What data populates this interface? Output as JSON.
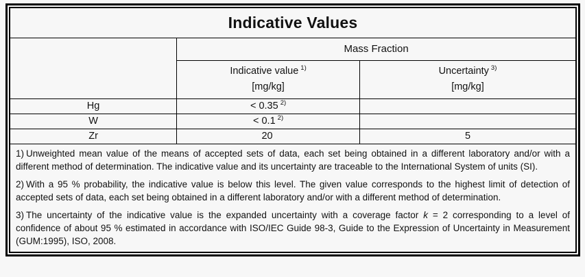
{
  "document": {
    "title": "Indicative Values",
    "group_header": "Mass Fraction",
    "columns": {
      "indicative": {
        "label": "Indicative value",
        "footnote_ref": "1)",
        "unit": "[mg/kg]"
      },
      "uncertainty": {
        "label": "Uncertainty",
        "footnote_ref": "3)",
        "unit": "[mg/kg]"
      }
    },
    "rows": [
      {
        "element": "Hg",
        "indicative": "< 0.35",
        "indicative_ref": "2)",
        "uncertainty": ""
      },
      {
        "element": "W",
        "indicative": "< 0.1",
        "indicative_ref": "2)",
        "uncertainty": ""
      },
      {
        "element": "Zr",
        "indicative": "20",
        "indicative_ref": "",
        "uncertainty": "5"
      }
    ],
    "footnotes": [
      {
        "id": "1)",
        "text": "Unweighted mean value of the means of accepted sets of data, each set being obtained in a different laboratory and/or with a different method of determination. The indicative value and its uncertainty are traceable to the International System of units (SI)."
      },
      {
        "id": "2)",
        "text": "With a 95 % probability, the indicative value is below this level. The given value corresponds to the highest limit of detection of accepted sets of data, each set being obtained in a different laboratory and/or with a different method of determination."
      },
      {
        "id": "3)",
        "text_before": "The uncertainty of the indicative value is the expanded uncertainty with a coverage factor ",
        "italic": "k",
        "text_after": " = 2 corresponding to a level of confidence of about 95 % estimated in accordance with ISO/IEC Guide 98-3, Guide to the Expression of Uncertainty in Measurement (GUM:1995), ISO, 2008."
      }
    ]
  },
  "colors": {
    "border": "#000000",
    "background": "#f7f7f7",
    "text": "#111111"
  }
}
